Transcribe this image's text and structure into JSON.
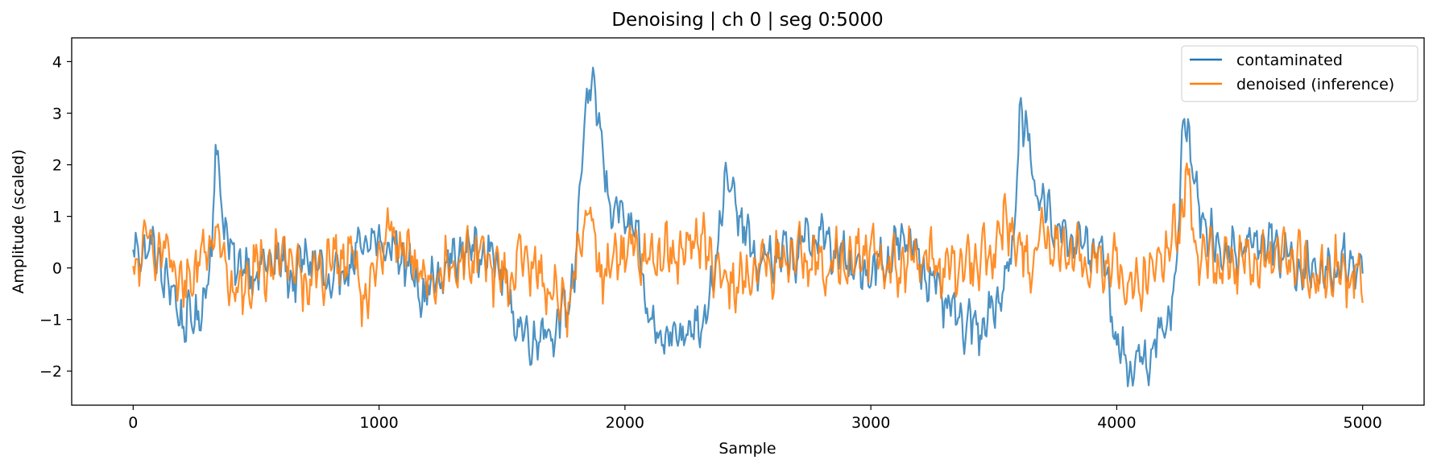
{
  "chart_data": {
    "type": "line",
    "title": "Denoising | ch 0 | seg 0:5000",
    "xlabel": "Sample",
    "ylabel": "Amplitude (scaled)",
    "xlim": [
      -250,
      5250
    ],
    "ylim": [
      -2.66,
      4.46
    ],
    "xticks": [
      0,
      1000,
      2000,
      3000,
      4000,
      5000
    ],
    "xtick_labels": [
      "0",
      "1000",
      "2000",
      "3000",
      "4000",
      "5000"
    ],
    "yticks": [
      -2,
      -1,
      0,
      1,
      2,
      3,
      4
    ],
    "ytick_labels": [
      "−2",
      "−1",
      "0",
      "1",
      "2",
      "3",
      "4"
    ],
    "grid": false,
    "legend_position": "top-right",
    "series": [
      {
        "name": "contaminated",
        "color": "#1f77b4",
        "anchors": [
          [
            0,
            0.3
          ],
          [
            40,
            0.4
          ],
          [
            90,
            0.3
          ],
          [
            130,
            -0.2
          ],
          [
            170,
            -0.6
          ],
          [
            210,
            -1.1
          ],
          [
            250,
            -1.0
          ],
          [
            290,
            -0.6
          ],
          [
            320,
            0.3
          ],
          [
            335,
            2.4
          ],
          [
            350,
            2.1
          ],
          [
            370,
            0.6
          ],
          [
            420,
            0.1
          ],
          [
            500,
            -0.1
          ],
          [
            580,
            0.2
          ],
          [
            650,
            -0.2
          ],
          [
            720,
            0.3
          ],
          [
            800,
            -0.4
          ],
          [
            900,
            0.2
          ],
          [
            960,
            0.5
          ],
          [
            1050,
            0.4
          ],
          [
            1100,
            0.2
          ],
          [
            1180,
            -0.5
          ],
          [
            1250,
            -0.2
          ],
          [
            1320,
            0.3
          ],
          [
            1400,
            0.4
          ],
          [
            1480,
            0.2
          ],
          [
            1540,
            -0.8
          ],
          [
            1600,
            -1.4
          ],
          [
            1650,
            -1.3
          ],
          [
            1700,
            -1.2
          ],
          [
            1760,
            -0.9
          ],
          [
            1800,
            0.2
          ],
          [
            1830,
            2.4
          ],
          [
            1850,
            3.6
          ],
          [
            1870,
            3.5
          ],
          [
            1900,
            2.5
          ],
          [
            1940,
            1.2
          ],
          [
            2000,
            1.0
          ],
          [
            2050,
            0.6
          ],
          [
            2080,
            -0.6
          ],
          [
            2130,
            -1.4
          ],
          [
            2200,
            -1.2
          ],
          [
            2260,
            -1.3
          ],
          [
            2320,
            -0.9
          ],
          [
            2360,
            -0.3
          ],
          [
            2400,
            1.6
          ],
          [
            2450,
            1.3
          ],
          [
            2480,
            0.8
          ],
          [
            2530,
            0.1
          ],
          [
            2600,
            0.2
          ],
          [
            2700,
            0.3
          ],
          [
            2780,
            0.7
          ],
          [
            2860,
            0.3
          ],
          [
            2950,
            -0.1
          ],
          [
            3050,
            0.1
          ],
          [
            3150,
            0.6
          ],
          [
            3250,
            -0.3
          ],
          [
            3350,
            -1.0
          ],
          [
            3420,
            -1.2
          ],
          [
            3500,
            -0.8
          ],
          [
            3580,
            0.3
          ],
          [
            3605,
            3.1
          ],
          [
            3640,
            2.4
          ],
          [
            3680,
            1.4
          ],
          [
            3740,
            0.9
          ],
          [
            3800,
            0.6
          ],
          [
            3880,
            0.4
          ],
          [
            3950,
            0.2
          ],
          [
            4000,
            -1.5
          ],
          [
            4050,
            -1.9
          ],
          [
            4100,
            -1.8
          ],
          [
            4180,
            -1.4
          ],
          [
            4240,
            -0.3
          ],
          [
            4275,
            3.2
          ],
          [
            4300,
            2.2
          ],
          [
            4340,
            1.0
          ],
          [
            4400,
            0.4
          ],
          [
            4480,
            0.3
          ],
          [
            4560,
            0.6
          ],
          [
            4650,
            0.4
          ],
          [
            4750,
            0.0
          ],
          [
            4850,
            -0.1
          ],
          [
            4950,
            0.1
          ],
          [
            5000,
            0.0
          ]
        ]
      },
      {
        "name": "denoised (inference)",
        "color": "#ff7f0e",
        "anchors": [
          [
            0,
            0.0
          ],
          [
            50,
            0.4
          ],
          [
            100,
            0.5
          ],
          [
            150,
            0.2
          ],
          [
            200,
            -0.5
          ],
          [
            250,
            0.0
          ],
          [
            300,
            0.4
          ],
          [
            350,
            0.7
          ],
          [
            400,
            -0.4
          ],
          [
            450,
            -0.5
          ],
          [
            500,
            0.1
          ],
          [
            550,
            0.0
          ],
          [
            620,
            0.4
          ],
          [
            700,
            -0.3
          ],
          [
            800,
            0.1
          ],
          [
            900,
            0.2
          ],
          [
            950,
            -0.9
          ],
          [
            1000,
            0.3
          ],
          [
            1050,
            0.7
          ],
          [
            1100,
            0.4
          ],
          [
            1150,
            0.1
          ],
          [
            1200,
            -0.3
          ],
          [
            1300,
            0.0
          ],
          [
            1400,
            0.3
          ],
          [
            1500,
            -0.2
          ],
          [
            1600,
            0.2
          ],
          [
            1700,
            -0.5
          ],
          [
            1780,
            -0.6
          ],
          [
            1820,
            0.5
          ],
          [
            1850,
            1.2
          ],
          [
            1900,
            -0.2
          ],
          [
            1950,
            0.2
          ],
          [
            2000,
            0.4
          ],
          [
            2100,
            0.3
          ],
          [
            2200,
            0.2
          ],
          [
            2300,
            0.6
          ],
          [
            2400,
            -0.3
          ],
          [
            2500,
            -0.2
          ],
          [
            2600,
            0.1
          ],
          [
            2700,
            0.3
          ],
          [
            2800,
            0.0
          ],
          [
            2900,
            0.2
          ],
          [
            3000,
            0.3
          ],
          [
            3100,
            0.0
          ],
          [
            3200,
            0.2
          ],
          [
            3300,
            -0.1
          ],
          [
            3400,
            0.1
          ],
          [
            3500,
            0.4
          ],
          [
            3560,
            0.8
          ],
          [
            3600,
            0.4
          ],
          [
            3650,
            0.0
          ],
          [
            3700,
            0.5
          ],
          [
            3800,
            0.3
          ],
          [
            3900,
            0.2
          ],
          [
            4000,
            0.1
          ],
          [
            4050,
            -0.5
          ],
          [
            4100,
            -0.2
          ],
          [
            4200,
            0.2
          ],
          [
            4260,
            1.0
          ],
          [
            4280,
            1.8
          ],
          [
            4320,
            0.3
          ],
          [
            4400,
            0.1
          ],
          [
            4500,
            0.2
          ],
          [
            4600,
            0.1
          ],
          [
            4700,
            0.3
          ],
          [
            4800,
            -0.2
          ],
          [
            4900,
            0.0
          ],
          [
            5000,
            -0.3
          ]
        ]
      }
    ]
  }
}
